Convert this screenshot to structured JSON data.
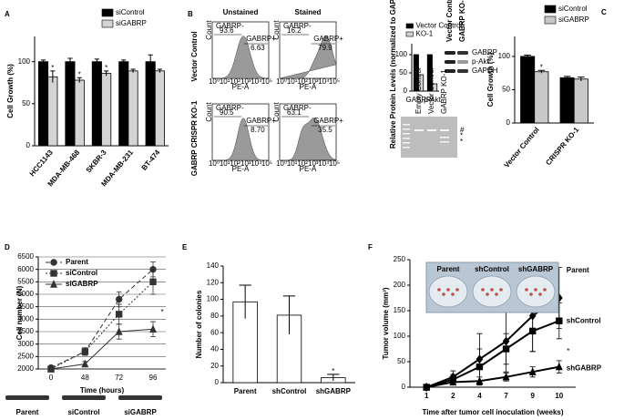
{
  "chart_data": [
    {
      "panel": "A",
      "type": "bar",
      "ylabel": "Cell Growth (%)",
      "categories": [
        "HCC1143",
        "MDA-MB-468",
        "SKBR-3",
        "MDA-MB-231",
        "BT-474"
      ],
      "series": [
        {
          "name": "siControl",
          "color": "#000000",
          "values": [
            100,
            100,
            100,
            100,
            100
          ],
          "errors": [
            2,
            4,
            3,
            2,
            8
          ]
        },
        {
          "name": "siGABRP",
          "color": "#d4d4d4",
          "values": [
            82,
            78,
            86,
            89,
            89
          ],
          "errors": [
            7,
            3,
            3,
            2,
            2
          ]
        }
      ],
      "ylim": [
        0,
        130
      ],
      "yticks": [
        0,
        50,
        100
      ],
      "legend": "upper right",
      "annotations": [
        {
          "text": "*",
          "category": "HCC1143"
        },
        {
          "text": "*",
          "category": "MDA-MB-468"
        },
        {
          "text": "*",
          "category": "SKBR-3"
        }
      ]
    },
    {
      "panel": "B",
      "type": "flow",
      "columns": [
        "Unstained",
        "Stained"
      ],
      "rows": [
        "Vector Control",
        "GABRP CRISPR KO-1"
      ],
      "gate_labels": [
        "GABRP-",
        "GABRP+"
      ],
      "gates": [
        [
          "93.6",
          "6.63"
        ],
        [
          "16.2",
          "79.9"
        ],
        [
          "90.5",
          "8.70"
        ],
        [
          "63.1",
          "35.5"
        ]
      ],
      "xlabel": "PE-A",
      "ylabel": "Count",
      "xticks": [
        "10⁰",
        "10¹",
        "10²",
        "10³",
        "10⁴",
        "10⁵"
      ]
    },
    {
      "type": "bar",
      "ylabel": "Relative Protein Levels (normalized to GAPDH)",
      "categories": [
        "GABRP",
        "p-Akt"
      ],
      "series": [
        {
          "name": "Vector Control",
          "color": "#000000",
          "values": [
            100,
            100
          ]
        },
        {
          "name": "KO-1",
          "color": "#d4d4d4",
          "values": [
            45,
            20
          ]
        }
      ],
      "ylim": [
        0,
        130
      ],
      "yticks": [
        0,
        50,
        100
      ],
      "legend": "upper center"
    },
    {
      "type": "blot",
      "lanes": [
        "Vector Control",
        "GABRP KO-1"
      ],
      "bands": [
        "GABRP",
        "p-Akt",
        "GAPDH"
      ]
    },
    {
      "type": "gel",
      "lanes": [
        "Empty Control",
        "Vector Control",
        "GABRP KO-1"
      ],
      "marks": [
        "#",
        "*",
        "*"
      ]
    },
    {
      "panel": "C",
      "type": "bar",
      "ylabel": "Cell Growth (%)",
      "categories": [
        "Vector Control",
        "CRISPR KO-1"
      ],
      "series": [
        {
          "name": "siControl",
          "color": "#000000",
          "values": [
            100,
            68
          ],
          "errors": [
            2,
            2
          ]
        },
        {
          "name": "siGABRP",
          "color": "#c8c8c8",
          "values": [
            77,
            66
          ],
          "errors": [
            2,
            3
          ]
        }
      ],
      "ylim": [
        0,
        130
      ],
      "yticks": [
        0,
        50,
        100
      ],
      "legend": "upper right",
      "annotations": [
        {
          "text": "*",
          "category": "Vector Control"
        }
      ]
    },
    {
      "panel": "D",
      "type": "line",
      "categories": [
        "0",
        "48",
        "72",
        "96"
      ],
      "xlabel": "Time (hours)",
      "ylabel": "Cell number (N)",
      "series": [
        {
          "name": "Parent",
          "color": "#333333",
          "marker": "circle",
          "dash": true,
          "values": [
            2050,
            2700,
            4800,
            6000
          ],
          "errors": [
            50,
            150,
            300,
            300
          ]
        },
        {
          "name": "siControl",
          "color": "#333333",
          "marker": "square",
          "dash": true,
          "values": [
            2000,
            2700,
            4200,
            5500
          ],
          "errors": [
            50,
            150,
            400,
            500
          ]
        },
        {
          "name": "siGABRP",
          "color": "#333333",
          "marker": "triangle",
          "dash": false,
          "values": [
            2000,
            2200,
            3500,
            3600
          ],
          "errors": [
            50,
            100,
            300,
            300
          ]
        }
      ],
      "ylim": [
        2000,
        6500
      ],
      "yticks": [
        2000,
        2500,
        3000,
        3500,
        4000,
        4500,
        5000,
        5500,
        6000,
        6500
      ],
      "grid": true,
      "legend": "upper left",
      "annotations": [
        {
          "text": "*",
          "category": "96"
        }
      ],
      "blot_lanes": [
        "Parent",
        "siControl",
        "siGABRP"
      ]
    },
    {
      "panel": "E",
      "type": "bar",
      "ylabel": "Number of colonies",
      "categories": [
        "Parent",
        "shControl",
        "shGABRP"
      ],
      "values": [
        97,
        81,
        6
      ],
      "errors": [
        20,
        23,
        4
      ],
      "color": "#ffffff",
      "ylim": [
        0,
        140
      ],
      "yticks": [
        0,
        20,
        40,
        60,
        80,
        100,
        120,
        140
      ],
      "annotations": [
        {
          "text": "*",
          "category": "shGABRP"
        }
      ]
    },
    {
      "panel": "F",
      "type": "line",
      "categories": [
        "1",
        "2",
        "4",
        "7",
        "9",
        "10"
      ],
      "xlabel": "Time after tumor cell inoculation (weeks)",
      "ylabel": "Tumor volume (mm³)",
      "series": [
        {
          "name": "Parent",
          "color": "#000000",
          "marker": "diamond",
          "dash": false,
          "values": [
            0,
            20,
            55,
            90,
            140,
            175
          ],
          "errors": [
            0,
            12,
            50,
            60,
            70,
            60
          ]
        },
        {
          "name": "shControl",
          "color": "#000000",
          "marker": "square",
          "dash": false,
          "values": [
            0,
            15,
            40,
            75,
            110,
            130
          ],
          "errors": [
            0,
            10,
            35,
            30,
            40,
            35
          ]
        },
        {
          "name": "shGABRP",
          "color": "#000000",
          "marker": "triangle",
          "dash": false,
          "values": [
            0,
            10,
            12,
            20,
            30,
            40
          ],
          "errors": [
            0,
            5,
            8,
            8,
            10,
            12
          ]
        }
      ],
      "ylim": [
        0,
        250
      ],
      "yticks": [
        0,
        50,
        100,
        150,
        200,
        250
      ],
      "legend": "line end",
      "annotations": [
        {
          "text": "*",
          "category": "10"
        }
      ],
      "inset_labels": [
        "Parent",
        "shControl",
        "shGABRP"
      ]
    }
  ]
}
